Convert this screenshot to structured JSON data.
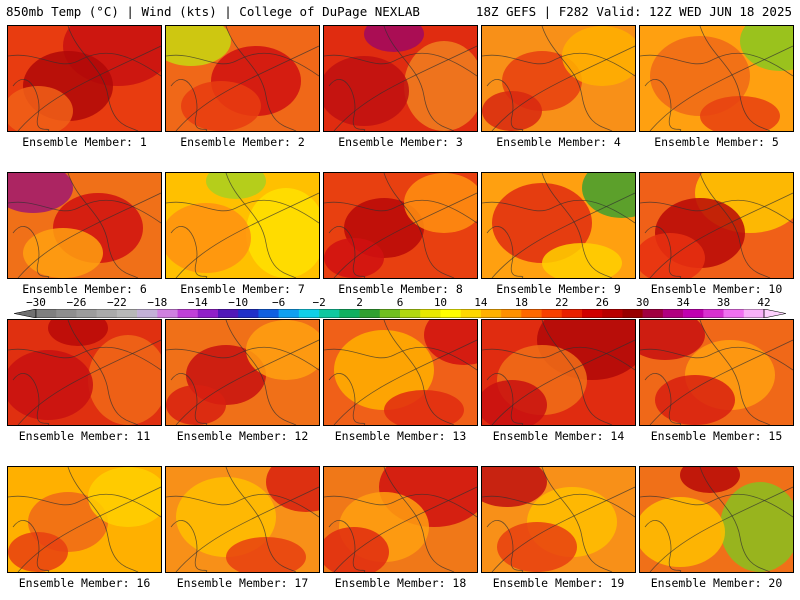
{
  "header": {
    "left_title": "850mb Temp (°C) | Wind (kts) | College of DuPage NEXLAB",
    "right_title": "18Z GEFS | F282 Valid: 12Z WED JUN 18 2025"
  },
  "scale": {
    "labels": [
      "−30",
      "−26",
      "−22",
      "−18",
      "−14",
      "−10",
      "−6",
      "−2",
      "2",
      "6",
      "10",
      "14",
      "18",
      "22",
      "26",
      "30",
      "34",
      "38",
      "42"
    ],
    "colors": [
      "#7f7f7f",
      "#8e8e8e",
      "#9c9c9c",
      "#aaaaaa",
      "#b8b8b8",
      "#c4b0d8",
      "#d080e0",
      "#c040d8",
      "#9020c8",
      "#5018b8",
      "#2030c8",
      "#1060e0",
      "#10a0f0",
      "#10d0e8",
      "#10c8a0",
      "#10b060",
      "#30a030",
      "#70c020",
      "#b0d810",
      "#e8e800",
      "#ffff00",
      "#ffd800",
      "#ffb000",
      "#ff9000",
      "#ff6800",
      "#f84000",
      "#e82000",
      "#d00000",
      "#b80000",
      "#980000",
      "#a00040",
      "#b00080",
      "#c000b0",
      "#d830d0",
      "#f070f0",
      "#f8b0f8"
    ]
  },
  "members": [
    {
      "label": "Ensemble Member: 1",
      "base": "#e83c10",
      "blobs": [
        {
          "c": "#c81010"
        },
        {
          "c": "#b00808"
        },
        {
          "c": "#f06018"
        }
      ]
    },
    {
      "label": "Ensemble Member: 2",
      "base": "#f06818",
      "blobs": [
        {
          "c": "#c8d810"
        },
        {
          "c": "#d01010"
        },
        {
          "c": "#e83c10"
        }
      ]
    },
    {
      "label": "Ensemble Member: 3",
      "base": "#e02c10",
      "blobs": [
        {
          "c": "#a00860"
        },
        {
          "c": "#f08020"
        },
        {
          "c": "#c01010"
        }
      ]
    },
    {
      "label": "Ensemble Member: 4",
      "base": "#f89018",
      "blobs": [
        {
          "c": "#e84010"
        },
        {
          "c": "#ffb000"
        },
        {
          "c": "#d82810"
        }
      ]
    },
    {
      "label": "Ensemble Member: 5",
      "base": "#ffa010",
      "blobs": [
        {
          "c": "#88c820"
        },
        {
          "c": "#f06818"
        },
        {
          "c": "#e84010"
        }
      ]
    },
    {
      "label": "Ensemble Member: 6",
      "base": "#f07018",
      "blobs": [
        {
          "c": "#a01870"
        },
        {
          "c": "#d01010"
        },
        {
          "c": "#ffa010"
        }
      ]
    },
    {
      "label": "Ensemble Member: 7",
      "base": "#ffc000",
      "blobs": [
        {
          "c": "#a8d020"
        },
        {
          "c": "#ffe000"
        },
        {
          "c": "#ff9010"
        }
      ]
    },
    {
      "label": "Ensemble Member: 8",
      "base": "#e84010",
      "blobs": [
        {
          "c": "#b80808"
        },
        {
          "c": "#ff9010"
        },
        {
          "c": "#d01010"
        }
      ]
    },
    {
      "label": "Ensemble Member: 9",
      "base": "#ffa010",
      "blobs": [
        {
          "c": "#40a030"
        },
        {
          "c": "#e02c10"
        },
        {
          "c": "#ffd000"
        }
      ]
    },
    {
      "label": "Ensemble Member: 10",
      "base": "#f06018",
      "blobs": [
        {
          "c": "#ffc800"
        },
        {
          "c": "#b80808"
        },
        {
          "c": "#e83010"
        }
      ]
    },
    {
      "label": "Ensemble Member: 11",
      "base": "#e03010",
      "blobs": [
        {
          "c": "#b80808"
        },
        {
          "c": "#f06818"
        },
        {
          "c": "#c81010"
        }
      ]
    },
    {
      "label": "Ensemble Member: 12",
      "base": "#f07018",
      "blobs": [
        {
          "c": "#c81010"
        },
        {
          "c": "#ffa010"
        },
        {
          "c": "#d82010"
        }
      ]
    },
    {
      "label": "Ensemble Member: 13",
      "base": "#f06018",
      "blobs": [
        {
          "c": "#d01010"
        },
        {
          "c": "#ffb000"
        },
        {
          "c": "#e02c10"
        }
      ]
    },
    {
      "label": "Ensemble Member: 14",
      "base": "#e02c10",
      "blobs": [
        {
          "c": "#b00808"
        },
        {
          "c": "#f07018"
        },
        {
          "c": "#c81010"
        }
      ]
    },
    {
      "label": "Ensemble Member: 15",
      "base": "#f06818",
      "blobs": [
        {
          "c": "#c81010"
        },
        {
          "c": "#ffa010"
        },
        {
          "c": "#d82010"
        }
      ]
    },
    {
      "label": "Ensemble Member: 16",
      "base": "#ffb000",
      "blobs": [
        {
          "c": "#f06818"
        },
        {
          "c": "#ffd000"
        },
        {
          "c": "#e84010"
        }
      ]
    },
    {
      "label": "Ensemble Member: 17",
      "base": "#f89018",
      "blobs": [
        {
          "c": "#d82010"
        },
        {
          "c": "#ffc000"
        },
        {
          "c": "#e84010"
        }
      ]
    },
    {
      "label": "Ensemble Member: 18",
      "base": "#f07818",
      "blobs": [
        {
          "c": "#d01010"
        },
        {
          "c": "#ffa010"
        },
        {
          "c": "#e02c10"
        }
      ]
    },
    {
      "label": "Ensemble Member: 19",
      "base": "#f89018",
      "blobs": [
        {
          "c": "#c01010"
        },
        {
          "c": "#ffc000"
        },
        {
          "c": "#e84010"
        }
      ]
    },
    {
      "label": "Ensemble Member: 20",
      "base": "#f07018",
      "blobs": [
        {
          "c": "#b80808"
        },
        {
          "c": "#88c020"
        },
        {
          "c": "#ffc000"
        }
      ]
    }
  ]
}
